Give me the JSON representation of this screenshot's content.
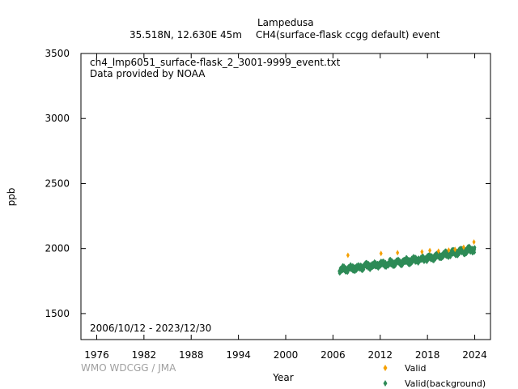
{
  "header": {
    "station": "Lampedusa",
    "location": "35.518N, 12.630E 45m",
    "species": "CH4(surface-flask ccgg default) event"
  },
  "plot_info": {
    "filename": "ch4_lmp6051_surface-flask_2_3001-9999_event.txt",
    "provider": "Data provided by NOAA",
    "date_range": "2006/10/12 - 2023/12/30"
  },
  "credit": "WMO WDCGG / JMA",
  "colors": {
    "valid": "#f5a000",
    "background": "#2e8b57"
  },
  "chart_data": {
    "type": "scatter",
    "xlabel": "Year",
    "ylabel": "ppb",
    "xlim": [
      1974,
      2026
    ],
    "ylim": [
      1300,
      3500
    ],
    "x_ticks": [
      1976,
      1982,
      1988,
      1994,
      2000,
      2006,
      2012,
      2018,
      2024
    ],
    "y_ticks": [
      1500,
      2000,
      2500,
      3000,
      3500
    ],
    "grid": false,
    "legend_position": "bottom-right",
    "series": [
      {
        "name": "Valid",
        "color": "#f5a000",
        "points": [
          [
            2007.9,
            1948
          ],
          [
            2012.1,
            1962
          ],
          [
            2014.2,
            1968
          ],
          [
            2017.3,
            1975
          ],
          [
            2018.3,
            1985
          ],
          [
            2019.4,
            1980
          ],
          [
            2020.7,
            1988
          ],
          [
            2021.5,
            1993
          ],
          [
            2022.6,
            2010
          ],
          [
            2023.9,
            2050
          ]
        ]
      },
      {
        "name": "Valid(background)",
        "color": "#2e8b57",
        "trend": [
          [
            2006.8,
            1835
          ],
          [
            2008,
            1845
          ],
          [
            2010,
            1862
          ],
          [
            2012,
            1878
          ],
          [
            2014,
            1892
          ],
          [
            2016,
            1908
          ],
          [
            2018,
            1925
          ],
          [
            2020,
            1950
          ],
          [
            2022,
            1975
          ],
          [
            2024,
            1995
          ]
        ],
        "spread": 22
      }
    ]
  }
}
